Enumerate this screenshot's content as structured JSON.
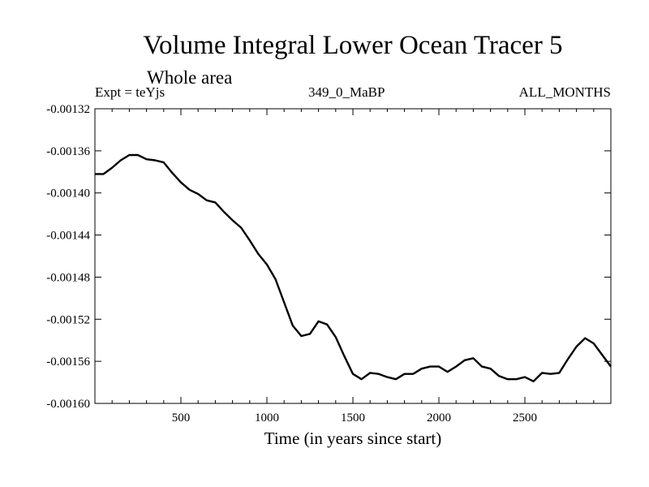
{
  "chart_data": {
    "type": "line",
    "title": "Volume Integral Lower Ocean Tracer 5",
    "subtitle": "Whole area",
    "header_left": "Expt = teYjs",
    "header_center": "349_0_MaBP",
    "header_right": "ALL_MONTHS",
    "xlabel": "Time (in years since start)",
    "ylabel": "",
    "xlim": [
      0,
      3000
    ],
    "ylim": [
      -0.0016,
      -0.00132
    ],
    "x_ticks": [
      500,
      1000,
      1500,
      2000,
      2500
    ],
    "x_tick_labels": [
      "500",
      "1000",
      "1500",
      "2000",
      "2500"
    ],
    "y_ticks": [
      -0.00132,
      -0.00136,
      -0.0014,
      -0.00144,
      -0.00148,
      -0.00152,
      -0.00156,
      -0.0016
    ],
    "y_tick_labels": [
      "-0.00132",
      "-0.00136",
      "-0.00140",
      "-0.00144",
      "-0.00148",
      "-0.00152",
      "-0.00156",
      "-0.00160"
    ],
    "series": [
      {
        "name": "Volume Integral Lower Ocean Tracer 5",
        "color": "#000000",
        "x": [
          0,
          50,
          100,
          150,
          200,
          250,
          300,
          350,
          400,
          450,
          500,
          550,
          600,
          650,
          700,
          750,
          800,
          850,
          900,
          950,
          1000,
          1050,
          1100,
          1150,
          1200,
          1250,
          1300,
          1350,
          1400,
          1450,
          1500,
          1550,
          1600,
          1650,
          1700,
          1750,
          1800,
          1850,
          1900,
          1950,
          2000,
          2050,
          2100,
          2150,
          2200,
          2250,
          2300,
          2350,
          2400,
          2450,
          2500,
          2550,
          2600,
          2650,
          2700,
          2750,
          2800,
          2850,
          2900,
          2950,
          3000
        ],
        "y": [
          -0.001382,
          -0.001382,
          -0.001376,
          -0.001369,
          -0.001364,
          -0.001364,
          -0.001368,
          -0.001369,
          -0.001371,
          -0.001381,
          -0.00139,
          -0.001397,
          -0.001401,
          -0.001407,
          -0.001409,
          -0.001418,
          -0.001426,
          -0.001433,
          -0.001445,
          -0.001458,
          -0.001468,
          -0.001482,
          -0.001504,
          -0.001526,
          -0.001536,
          -0.001534,
          -0.001522,
          -0.001525,
          -0.001537,
          -0.001555,
          -0.001572,
          -0.001577,
          -0.001571,
          -0.001572,
          -0.001575,
          -0.001577,
          -0.001572,
          -0.001572,
          -0.001567,
          -0.001565,
          -0.001565,
          -0.00157,
          -0.001565,
          -0.001559,
          -0.001557,
          -0.001565,
          -0.001567,
          -0.001574,
          -0.001577,
          -0.001577,
          -0.001575,
          -0.001579,
          -0.001571,
          -0.001572,
          -0.001571,
          -0.001558,
          -0.001546,
          -0.001538,
          -0.001543,
          -0.001554,
          -0.001565
        ]
      }
    ]
  }
}
